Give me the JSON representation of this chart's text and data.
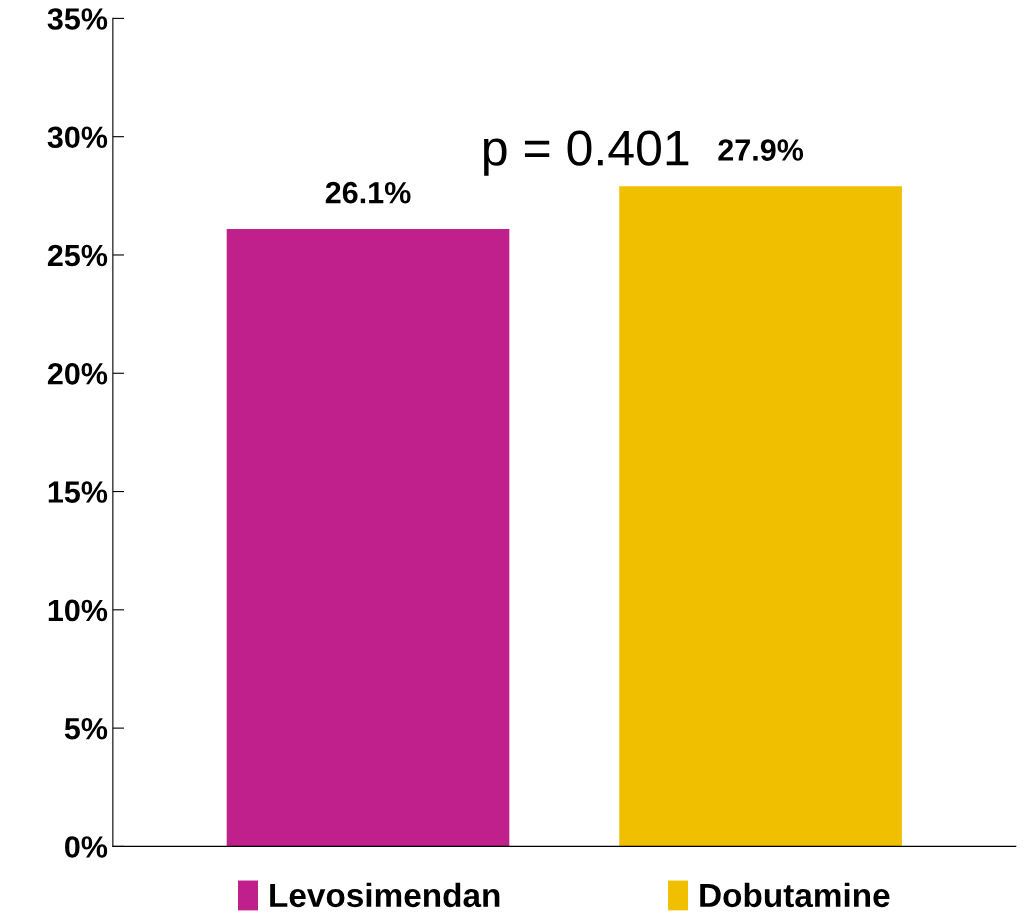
{
  "chart_data": {
    "type": "bar",
    "categories": [
      null,
      null
    ],
    "series": [
      {
        "name": "Levosimendan",
        "color": "#c0208c",
        "values": [
          26.1,
          null
        ],
        "value_labels": [
          "26.1%",
          null
        ]
      },
      {
        "name": "Dobutamine",
        "color": "#f0c000",
        "values": [
          null,
          27.9
        ],
        "value_labels": [
          null,
          "27.9%"
        ]
      }
    ],
    "ylim": [
      0,
      35
    ],
    "yticks": [
      {
        "value": 0,
        "label": "0%"
      },
      {
        "value": 5,
        "label": "5%"
      },
      {
        "value": 10,
        "label": "10%"
      },
      {
        "value": 15,
        "label": "15%"
      },
      {
        "value": 20,
        "label": "20%"
      },
      {
        "value": 25,
        "label": "25%"
      },
      {
        "value": 30,
        "label": "30%"
      },
      {
        "value": 35,
        "label": "35%"
      }
    ],
    "legend": "bottom",
    "grid": false,
    "annotations": [
      "p = 0.401"
    ]
  }
}
